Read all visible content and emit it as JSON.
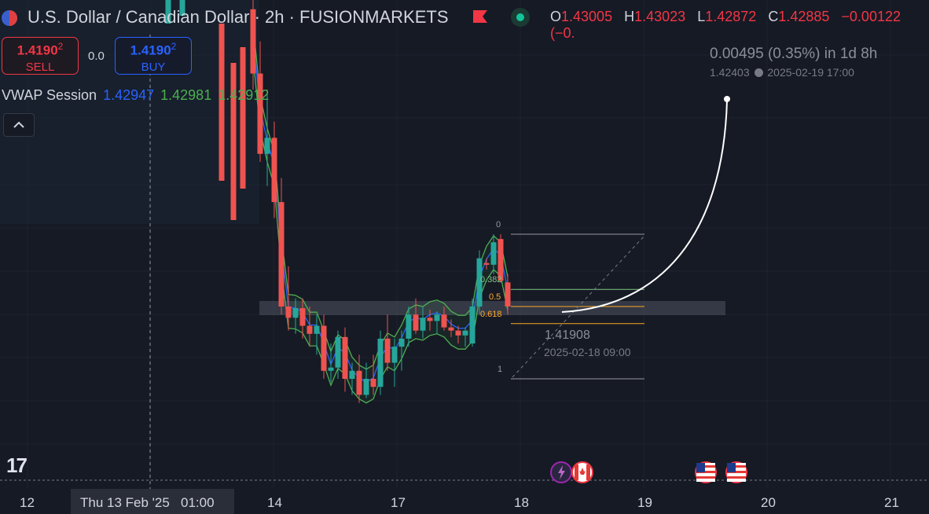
{
  "header": {
    "symbol_title": "U.S. Dollar / Canadian Dollar · 2h · FUSIONMARKETS",
    "ohlc": [
      {
        "key": "O",
        "value": "1.43005"
      },
      {
        "key": "H",
        "value": "1.43023"
      },
      {
        "key": "L",
        "value": "1.42872"
      },
      {
        "key": "C",
        "value": "1.42885"
      },
      {
        "key": "",
        "value": "−0.00122 (−0."
      }
    ]
  },
  "trade": {
    "sell_price": "1.4190",
    "sell_price_sup": "2",
    "sell_label": "SELL",
    "spread": "0.0",
    "buy_price": "1.4190",
    "buy_price_sup": "2",
    "buy_label": "BUY"
  },
  "indicator": {
    "name": "VWAP Session",
    "value_blue": "1.42947",
    "value_green1": "1.42981",
    "value_green2": "1.42912"
  },
  "annotations": {
    "projection_change": "0.00495 (0.35%) in 1d 8h",
    "projection_price": "1.42403",
    "projection_date": "2025-02-19  17:00",
    "anchor_price": "1.41908",
    "anchor_date": "2025-02-18 09:00",
    "fib_levels": [
      {
        "label": "0",
        "color": "#9598a1"
      },
      {
        "label": "0.382",
        "color": "#81c784"
      },
      {
        "label": "0.5",
        "color": "#ffa726"
      },
      {
        "label": "0.618",
        "color": "#ffa726"
      },
      {
        "label": "1",
        "color": "#9598a1"
      }
    ]
  },
  "xaxis": {
    "labels": [
      "12",
      "14",
      "17",
      "18",
      "19",
      "20",
      "21"
    ],
    "crosshair_label": "Thu 13 Feb '25   01:00"
  },
  "brand": {
    "logo_text": "17"
  },
  "colors": {
    "background": "#161a25",
    "up": "#26a69a",
    "down": "#ef5350",
    "vwap_blue": "#2962ff",
    "vwap_green": "#4caf50"
  },
  "chart_data": {
    "type": "candlestick",
    "title": "U.S. Dollar / Canadian Dollar · 2h · FUSIONMARKETS",
    "x_tick_labels": [
      "12",
      "14",
      "17",
      "18",
      "19",
      "20",
      "21"
    ],
    "candles": [
      {
        "o": 1.438,
        "h": 1.44,
        "l": 1.433,
        "c": 1.434
      },
      {
        "o": 1.434,
        "h": 1.436,
        "l": 1.4285,
        "c": 1.429
      },
      {
        "o": 1.429,
        "h": 1.433,
        "l": 1.427,
        "c": 1.43
      },
      {
        "o": 1.43,
        "h": 1.431,
        "l": 1.425,
        "c": 1.426
      },
      {
        "o": 1.426,
        "h": 1.4275,
        "l": 1.419,
        "c": 1.4195
      },
      {
        "o": 1.4195,
        "h": 1.422,
        "l": 1.418,
        "c": 1.4188
      },
      {
        "o": 1.4188,
        "h": 1.42,
        "l": 1.4178,
        "c": 1.4194
      },
      {
        "o": 1.4194,
        "h": 1.42,
        "l": 1.4175,
        "c": 1.4183
      },
      {
        "o": 1.4183,
        "h": 1.4195,
        "l": 1.417,
        "c": 1.4178
      },
      {
        "o": 1.4178,
        "h": 1.419,
        "l": 1.4165,
        "c": 1.4183
      },
      {
        "o": 1.4183,
        "h": 1.419,
        "l": 1.415,
        "c": 1.4155
      },
      {
        "o": 1.4155,
        "h": 1.4172,
        "l": 1.4148,
        "c": 1.4157
      },
      {
        "o": 1.4157,
        "h": 1.418,
        "l": 1.415,
        "c": 1.4176
      },
      {
        "o": 1.4176,
        "h": 1.4182,
        "l": 1.4142,
        "c": 1.415
      },
      {
        "o": 1.415,
        "h": 1.416,
        "l": 1.414,
        "c": 1.4155
      },
      {
        "o": 1.4155,
        "h": 1.4165,
        "l": 1.4135,
        "c": 1.414
      },
      {
        "o": 1.414,
        "h": 1.416,
        "l": 1.4138,
        "c": 1.415
      },
      {
        "o": 1.415,
        "h": 1.4165,
        "l": 1.414,
        "c": 1.4145
      },
      {
        "o": 1.4145,
        "h": 1.418,
        "l": 1.414,
        "c": 1.4175
      },
      {
        "o": 1.4175,
        "h": 1.419,
        "l": 1.4155,
        "c": 1.416
      },
      {
        "o": 1.416,
        "h": 1.4175,
        "l": 1.4145,
        "c": 1.417
      },
      {
        "o": 1.417,
        "h": 1.418,
        "l": 1.4155,
        "c": 1.4175
      },
      {
        "o": 1.4175,
        "h": 1.4195,
        "l": 1.417,
        "c": 1.419
      },
      {
        "o": 1.419,
        "h": 1.42,
        "l": 1.4178,
        "c": 1.418
      },
      {
        "o": 1.418,
        "h": 1.4195,
        "l": 1.4175,
        "c": 1.4188
      },
      {
        "o": 1.4188,
        "h": 1.4193,
        "l": 1.418,
        "c": 1.4186
      },
      {
        "o": 1.4186,
        "h": 1.4192,
        "l": 1.4178,
        "c": 1.419
      },
      {
        "o": 1.419,
        "h": 1.4195,
        "l": 1.418,
        "c": 1.4182
      },
      {
        "o": 1.4182,
        "h": 1.4187,
        "l": 1.4176,
        "c": 1.418
      },
      {
        "o": 1.418,
        "h": 1.4183,
        "l": 1.4172,
        "c": 1.4177
      },
      {
        "o": 1.4177,
        "h": 1.4182,
        "l": 1.417,
        "c": 1.418
      },
      {
        "o": 1.4172,
        "h": 1.42,
        "l": 1.417,
        "c": 1.4195
      },
      {
        "o": 1.4195,
        "h": 1.423,
        "l": 1.419,
        "c": 1.4225
      },
      {
        "o": 1.4222,
        "h": 1.4225,
        "l": 1.4218,
        "c": 1.4221
      },
      {
        "o": 1.4221,
        "h": 1.424,
        "l": 1.4215,
        "c": 1.4235
      },
      {
        "o": 1.4237,
        "h": 1.424,
        "l": 1.421,
        "c": 1.4211
      },
      {
        "o": 1.421,
        "h": 1.4215,
        "l": 1.419,
        "c": 1.4195
      }
    ],
    "fib_retracement": {
      "levels": [
        0,
        0.382,
        0.5,
        0.618,
        1
      ],
      "high": 1.42403,
      "low": 1.41908
    }
  }
}
